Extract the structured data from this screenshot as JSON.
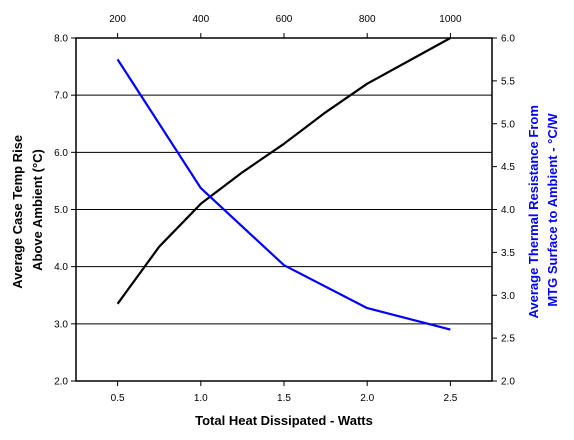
{
  "chart_data": {
    "type": "line",
    "x": [
      0.5,
      1.0,
      1.5,
      2.0,
      2.5
    ],
    "xlim": [
      0.25,
      2.75
    ],
    "xticks": [
      "0.5",
      "1.0",
      "1.5",
      "2.0",
      "2.5"
    ],
    "xlabel": "Total Heat Dissipated - Watts",
    "x2lim": [
      100,
      1100
    ],
    "x2ticks": [
      "200",
      "400",
      "600",
      "800",
      "1000"
    ],
    "ylabel_left": "Average Case Temp Rise Above Ambient (°C)",
    "ylabel_left_lines": [
      "Average Case Temp Rise",
      "Above Ambient (°C)"
    ],
    "ylim_left": [
      2.0,
      8.0
    ],
    "yticks_left": [
      "2.0",
      "3.0",
      "4.0",
      "5.0",
      "6.0",
      "7.0",
      "8.0"
    ],
    "ylabel_right": "Average Thermal Resistance From MTG Surface to Ambient - °C/W",
    "ylabel_right_lines": [
      "Average Thermal Resistance From",
      "MTG  Surface to Ambient - °C/W"
    ],
    "ylim_right": [
      2.0,
      6.0
    ],
    "yticks_right": [
      "2.0",
      "2.5",
      "3.0",
      "3.5",
      "4.0",
      "4.5",
      "5.0",
      "5.5",
      "6.0"
    ],
    "grid": "horizontal",
    "series": [
      {
        "axis": "left",
        "color": "#000000",
        "points": [
          [
            0.5,
            3.35
          ],
          [
            0.75,
            4.35
          ],
          [
            1.0,
            5.1
          ],
          [
            1.25,
            5.65
          ],
          [
            1.5,
            6.15
          ],
          [
            1.75,
            6.7
          ],
          [
            2.0,
            7.2
          ],
          [
            2.25,
            7.6
          ],
          [
            2.5,
            8.0
          ]
        ]
      },
      {
        "axis": "right",
        "color": "#0000ff",
        "points": [
          [
            0.5,
            5.75
          ],
          [
            1.0,
            4.25
          ],
          [
            1.5,
            3.35
          ],
          [
            2.0,
            2.85
          ],
          [
            2.5,
            2.6
          ]
        ]
      }
    ]
  }
}
